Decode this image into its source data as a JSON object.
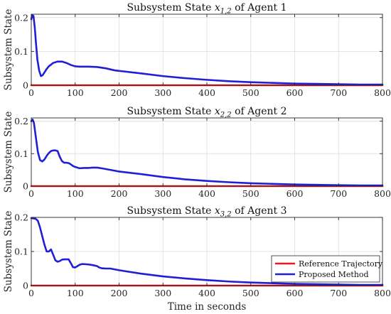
{
  "figure": {
    "xlabel": "Time in seconds"
  },
  "chart_data": [
    {
      "type": "line",
      "title_prefix": "Subsystem State ",
      "title_math": "x",
      "title_sub": "1,2",
      "title_suffix": " of Agent 1",
      "ylabel": "Subsystem State",
      "xlim": [
        0,
        800
      ],
      "ylim": [
        0,
        0.21
      ],
      "xticks": [
        "0",
        "100",
        "200",
        "300",
        "400",
        "500",
        "600",
        "700",
        "800"
      ],
      "yticks": [
        "0",
        "0.1",
        "0.2"
      ],
      "grid": true,
      "series": [
        {
          "name": "Reference Trajectory",
          "color": "#e8191c",
          "x": [
            0,
            800
          ],
          "y": [
            0,
            0
          ]
        },
        {
          "name": "Proposed Method",
          "color": "#1f1fd6",
          "x": [
            0,
            2,
            5,
            8,
            11,
            14,
            18,
            22,
            26,
            30,
            35,
            40,
            50,
            60,
            70,
            80,
            90,
            100,
            110,
            130,
            150,
            170,
            190,
            210,
            250,
            300,
            350,
            400,
            450,
            500,
            550,
            600,
            650,
            700,
            750,
            800
          ],
          "y": [
            0.195,
            0.207,
            0.205,
            0.17,
            0.12,
            0.075,
            0.043,
            0.027,
            0.03,
            0.038,
            0.048,
            0.056,
            0.066,
            0.07,
            0.07,
            0.066,
            0.06,
            0.056,
            0.055,
            0.055,
            0.054,
            0.05,
            0.044,
            0.041,
            0.035,
            0.027,
            0.021,
            0.016,
            0.012,
            0.009,
            0.007,
            0.005,
            0.004,
            0.003,
            0.002,
            0.002
          ]
        }
      ]
    },
    {
      "type": "line",
      "title_prefix": "Subsystem State ",
      "title_math": "x",
      "title_sub": "2,2",
      "title_suffix": " of Agent 2",
      "ylabel": "Subsystem State",
      "xlim": [
        0,
        800
      ],
      "ylim": [
        0,
        0.21
      ],
      "xticks": [
        "0",
        "100",
        "200",
        "300",
        "400",
        "500",
        "600",
        "700",
        "800"
      ],
      "yticks": [
        "0",
        "0.1",
        "0.2"
      ],
      "grid": true,
      "series": [
        {
          "name": "Reference Trajectory",
          "color": "#e8191c",
          "x": [
            0,
            800
          ],
          "y": [
            0,
            0
          ]
        },
        {
          "name": "Proposed Method",
          "color": "#1f1fd6",
          "x": [
            0,
            3,
            6,
            10,
            15,
            20,
            25,
            30,
            35,
            40,
            45,
            50,
            55,
            60,
            65,
            70,
            75,
            80,
            85,
            90,
            95,
            100,
            110,
            120,
            130,
            140,
            150,
            160,
            180,
            200,
            250,
            300,
            350,
            400,
            450,
            500,
            550,
            600,
            650,
            700,
            750,
            800
          ],
          "y": [
            0.2,
            0.205,
            0.195,
            0.155,
            0.105,
            0.08,
            0.076,
            0.082,
            0.093,
            0.102,
            0.108,
            0.11,
            0.11,
            0.108,
            0.09,
            0.077,
            0.072,
            0.072,
            0.071,
            0.067,
            0.062,
            0.059,
            0.055,
            0.056,
            0.056,
            0.057,
            0.057,
            0.055,
            0.05,
            0.045,
            0.037,
            0.028,
            0.021,
            0.016,
            0.012,
            0.009,
            0.007,
            0.005,
            0.004,
            0.003,
            0.002,
            0.002
          ]
        }
      ]
    },
    {
      "type": "line",
      "title_prefix": "Subsystem State ",
      "title_math": "x",
      "title_sub": "3,2",
      "title_suffix": " of Agent 3",
      "ylabel": "Subsystem State",
      "xlim": [
        0,
        800
      ],
      "ylim": [
        0,
        0.2
      ],
      "xticks": [
        "0",
        "100",
        "200",
        "300",
        "400",
        "500",
        "600",
        "700",
        "800"
      ],
      "yticks": [
        "0",
        "0.1",
        "0.2"
      ],
      "grid": true,
      "legend": {
        "position": "bottom-right",
        "entries": [
          "Reference Trajectory",
          "Proposed Method"
        ]
      },
      "series": [
        {
          "name": "Reference Trajectory",
          "color": "#e8191c",
          "x": [
            0,
            800
          ],
          "y": [
            0,
            0
          ]
        },
        {
          "name": "Proposed Method",
          "color": "#1f1fd6",
          "x": [
            0,
            5,
            10,
            15,
            20,
            25,
            30,
            35,
            40,
            45,
            50,
            55,
            60,
            65,
            70,
            75,
            80,
            85,
            90,
            95,
            100,
            105,
            110,
            115,
            120,
            130,
            140,
            150,
            155,
            160,
            170,
            180,
            200,
            250,
            300,
            350,
            400,
            450,
            500,
            550,
            600,
            650,
            700,
            750,
            800
          ],
          "y": [
            0.198,
            0.197,
            0.196,
            0.19,
            0.17,
            0.145,
            0.12,
            0.1,
            0.1,
            0.106,
            0.09,
            0.074,
            0.07,
            0.072,
            0.076,
            0.077,
            0.077,
            0.077,
            0.066,
            0.054,
            0.053,
            0.057,
            0.061,
            0.063,
            0.063,
            0.062,
            0.06,
            0.057,
            0.053,
            0.051,
            0.05,
            0.05,
            0.045,
            0.035,
            0.027,
            0.021,
            0.016,
            0.012,
            0.009,
            0.007,
            0.005,
            0.004,
            0.003,
            0.002,
            0.002
          ]
        }
      ]
    }
  ]
}
